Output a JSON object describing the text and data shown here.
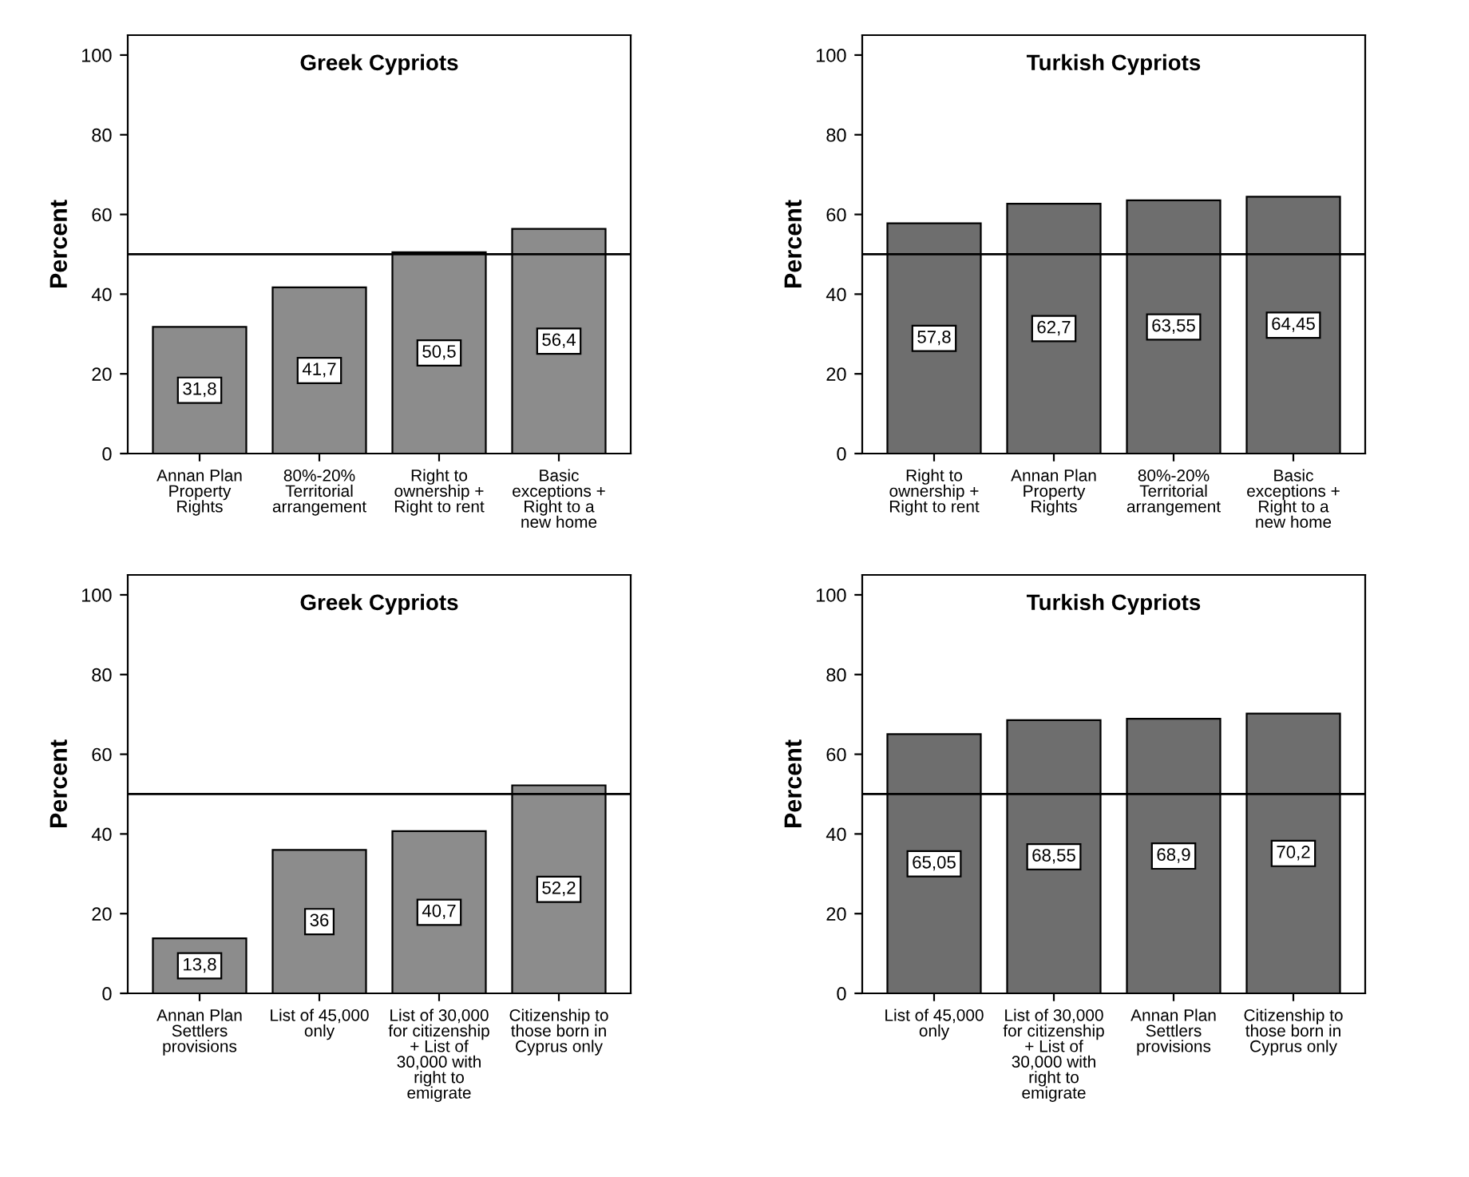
{
  "chart_data": [
    {
      "type": "bar",
      "title": "Greek Cypriots",
      "ylabel": "Percent",
      "categories": [
        "Annan Plan\nProperty\nRights",
        "80%-20%\nTerritorial\narrangement",
        "Right to\nownership +\nRight to rent",
        "Basic\nexceptions +\nRight to a\nnew home"
      ],
      "values": [
        31.8,
        41.7,
        50.5,
        56.4
      ],
      "value_labels": [
        "31,8",
        "41,7",
        "50,5",
        "56,4"
      ],
      "color": "#8c8c8c",
      "ylim": [
        0,
        105
      ],
      "yticks": [
        0,
        20,
        40,
        60,
        80,
        100
      ],
      "ref_lines": [
        {
          "axis": "y",
          "value": 50
        }
      ],
      "grid": false
    },
    {
      "type": "bar",
      "title": "Turkish Cypriots",
      "ylabel": "Percent",
      "categories": [
        "Right to\nownership +\nRight to rent",
        "Annan Plan\nProperty\nRights",
        "80%-20%\nTerritorial\narrangement",
        "Basic\nexceptions +\nRight to a\nnew home"
      ],
      "values": [
        57.8,
        62.7,
        63.55,
        64.45
      ],
      "value_labels": [
        "57,8",
        "62,7",
        "63,55",
        "64,45"
      ],
      "color": "#6e6e6e",
      "ylim": [
        0,
        105
      ],
      "yticks": [
        0,
        20,
        40,
        60,
        80,
        100
      ],
      "ref_lines": [
        {
          "axis": "y",
          "value": 50
        }
      ],
      "grid": false
    },
    {
      "type": "bar",
      "title": "Greek Cypriots",
      "ylabel": "Percent",
      "categories": [
        "Annan Plan\nSettlers\nprovisions",
        "List of 45,000\nonly",
        "List of 30,000\nfor citizenship\n+ List of\n30,000 with\nright to\nemigrate",
        "Citizenship to\nthose born in\nCyprus only"
      ],
      "values": [
        13.8,
        36,
        40.7,
        52.2
      ],
      "value_labels": [
        "13,8",
        "36",
        "40,7",
        "52,2"
      ],
      "color": "#8c8c8c",
      "ylim": [
        0,
        105
      ],
      "yticks": [
        0,
        20,
        40,
        60,
        80,
        100
      ],
      "ref_lines": [
        {
          "axis": "y",
          "value": 50
        }
      ],
      "grid": false
    },
    {
      "type": "bar",
      "title": "Turkish Cypriots",
      "ylabel": "Percent",
      "categories": [
        "List of 45,000\nonly",
        "List of 30,000\nfor citizenship\n+ List of\n30,000 with\nright to\nemigrate",
        "Annan Plan\nSettlers\nprovisions",
        "Citizenship to\nthose born in\nCyprus only"
      ],
      "values": [
        65.05,
        68.55,
        68.9,
        70.2
      ],
      "value_labels": [
        "65,05",
        "68,55",
        "68,9",
        "70,2"
      ],
      "color": "#6e6e6e",
      "ylim": [
        0,
        105
      ],
      "yticks": [
        0,
        20,
        40,
        60,
        80,
        100
      ],
      "ref_lines": [
        {
          "axis": "y",
          "value": 50
        }
      ],
      "grid": false
    }
  ]
}
